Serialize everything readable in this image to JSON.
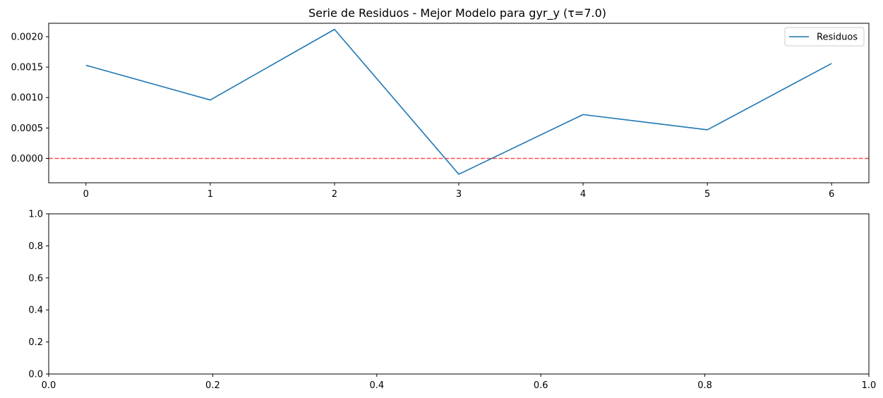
{
  "chart_data": [
    {
      "type": "line",
      "title": "Serie de Residuos - Mejor Modelo para gyr_y (τ=7.0)",
      "xlabel": "",
      "ylabel": "",
      "x": [
        0,
        1,
        2,
        3,
        4,
        5,
        6
      ],
      "series": [
        {
          "name": "Residuos",
          "values": [
            0.00153,
            0.00096,
            0.00212,
            -0.00026,
            0.00072,
            0.00047,
            0.00156
          ],
          "color": "#1f77b4"
        }
      ],
      "reference_lines": [
        {
          "y": 0.0,
          "color": "#ff0000",
          "style": "dashed",
          "opacity": 0.7
        }
      ],
      "xlim": [
        -0.3,
        6.3
      ],
      "ylim": [
        -0.0004,
        0.00222
      ],
      "xticks": [
        0,
        1,
        2,
        3,
        4,
        5,
        6
      ],
      "xtick_labels": [
        "0",
        "1",
        "2",
        "3",
        "4",
        "5",
        "6"
      ],
      "yticks": [
        0.0,
        0.0005,
        0.001,
        0.0015,
        0.002
      ],
      "ytick_labels": [
        "0.0000",
        "0.0005",
        "0.0010",
        "0.0015",
        "0.0020"
      ],
      "legend": {
        "placement": "upper right",
        "entries": [
          "Residuos"
        ]
      },
      "grid": false
    },
    {
      "type": "line",
      "title": "",
      "xlabel": "",
      "ylabel": "",
      "series": [],
      "xlim": [
        0.0,
        1.0
      ],
      "ylim": [
        0.0,
        1.0
      ],
      "xticks": [
        0.0,
        0.2,
        0.4,
        0.6,
        0.8,
        1.0
      ],
      "xtick_labels": [
        "0.0",
        "0.2",
        "0.4",
        "0.6",
        "0.8",
        "1.0"
      ],
      "yticks": [
        0.0,
        0.2,
        0.4,
        0.6,
        0.8,
        1.0
      ],
      "ytick_labels": [
        "0.0",
        "0.2",
        "0.4",
        "0.6",
        "0.8",
        "1.0"
      ],
      "grid": false
    }
  ]
}
